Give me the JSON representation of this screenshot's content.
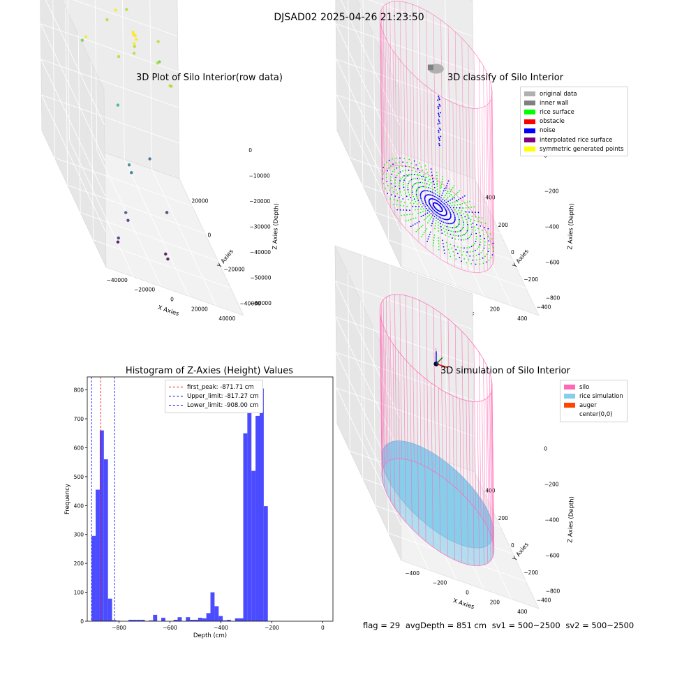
{
  "suptitle": "DJSAD02 2025-04-26 21:23:50",
  "footer": {
    "flag": "flag = 29",
    "avg_depth": "avgDepth = 851 cm",
    "sv1": "sv1 = 500~2500",
    "sv2": "sv2 = 500~2500"
  },
  "chart_data": [
    {
      "type": "scatter",
      "title": "3D Plot of Silo Interior(row data)",
      "xlabel": "X Axies",
      "ylabel": "Y Axies",
      "zlabel": "Z Axies (Depth)",
      "x_ticks": [
        "−40000",
        "−20000",
        "0",
        "20000",
        "40000"
      ],
      "y_ticks": [
        "−40000",
        "−20000",
        "0",
        "20000"
      ],
      "z_ticks": [
        "−60000",
        "−50000",
        "−40000",
        "−30000",
        "−20000",
        "−10000",
        "0"
      ],
      "xlim": [
        -50000,
        50000
      ],
      "ylim": [
        -50000,
        30000
      ],
      "zlim": [
        -62000,
        2000
      ],
      "points": [
        {
          "x": 2000,
          "y": 3000,
          "z": -1000
        },
        {
          "x": 3000,
          "y": 2000,
          "z": -1500
        },
        {
          "x": 2500,
          "y": 3500,
          "z": -2000
        },
        {
          "x": 4000,
          "y": 2500,
          "z": -3000
        },
        {
          "x": 1500,
          "y": 1000,
          "z": -4000
        },
        {
          "x": 3500,
          "y": 4000,
          "z": -2500
        },
        {
          "x": 2000,
          "y": 2000,
          "z": -8000
        },
        {
          "x": 3000,
          "y": 3000,
          "z": -6000
        },
        {
          "x": -2000,
          "y": 18000,
          "z": -3000
        },
        {
          "x": 15000,
          "y": -5000,
          "z": -5000
        },
        {
          "x": 20000,
          "y": -12000,
          "z": -8000
        },
        {
          "x": 22000,
          "y": -10000,
          "z": -9000
        },
        {
          "x": -10000,
          "y": 15000,
          "z": -6000
        },
        {
          "x": 25000,
          "y": 10000,
          "z": -12000
        },
        {
          "x": -15000,
          "y": -8000,
          "z": -6000
        },
        {
          "x": 30000,
          "y": 20000,
          "z": -10000
        },
        {
          "x": -30000,
          "y": 12000,
          "z": -15000
        },
        {
          "x": -20000,
          "y": -15000,
          "z": -20000
        },
        {
          "x": 10000,
          "y": 25000,
          "z": -5000
        },
        {
          "x": -40000,
          "y": -10000,
          "z": -2000
        },
        {
          "x": -18000,
          "y": -25000,
          "z": -35000
        },
        {
          "x": -17000,
          "y": -26000,
          "z": -37000
        },
        {
          "x": 8000,
          "y": -6000,
          "z": -40000
        },
        {
          "x": -25000,
          "y": -35000,
          "z": -50000
        },
        {
          "x": -26000,
          "y": -34000,
          "z": -48000
        },
        {
          "x": -35000,
          "y": -40000,
          "z": -55000
        },
        {
          "x": -36000,
          "y": -41000,
          "z": -56000
        },
        {
          "x": 5000,
          "y": -30000,
          "z": -60000
        },
        {
          "x": 6000,
          "y": -31000,
          "z": -61000
        },
        {
          "x": 12000,
          "y": -20000,
          "z": -50000
        }
      ]
    },
    {
      "type": "scatter",
      "title": "3D classify of Silo Interior",
      "xlabel": "X Axies",
      "ylabel": "Y Axies",
      "zlabel": "Z Axies (Depth)",
      "x_ticks": [
        "−400",
        "−200",
        "0",
        "200",
        "400"
      ],
      "y_ticks": [
        "−400",
        "−200",
        "0",
        "200",
        "400"
      ],
      "z_ticks": [
        "−800",
        "−600",
        "−400",
        "−200",
        "0"
      ],
      "xlim": [
        -500,
        500
      ],
      "ylim": [
        -500,
        500
      ],
      "zlim": [
        -900,
        0
      ],
      "legend_position": "top-right",
      "legend": [
        {
          "name": "original data",
          "color": "#b0b0b0"
        },
        {
          "name": "inner wall",
          "color": "#808080"
        },
        {
          "name": "rice surface",
          "color": "#00ff00"
        },
        {
          "name": "obstacle",
          "color": "#ff0000"
        },
        {
          "name": "noise",
          "color": "#0000ff"
        },
        {
          "name": "interpolated rice surface",
          "color": "#800080"
        },
        {
          "name": "symmetric generated points",
          "color": "#ffff00"
        }
      ],
      "silo_radius": 370,
      "silo_bottom": -880,
      "silo_top": -50
    },
    {
      "type": "bar",
      "title": "Histogram of Z-Axies (Height) Values",
      "xlabel": "Depth (cm)",
      "ylabel": "Frequency",
      "xlim": [
        -925,
        40
      ],
      "ylim": [
        0,
        845
      ],
      "x_ticks": [
        "−800",
        "−600",
        "−400",
        "−200",
        "0"
      ],
      "y_ticks": [
        "0",
        "100",
        "200",
        "300",
        "400",
        "500",
        "600",
        "700",
        "800"
      ],
      "bin_start": -908,
      "bin_width": 16.1,
      "values": [
        295,
        455,
        660,
        560,
        78,
        4,
        2,
        0,
        0,
        5,
        5,
        5,
        5,
        0,
        3,
        22,
        0,
        12,
        0,
        0,
        5,
        14,
        0,
        14,
        5,
        5,
        12,
        10,
        28,
        100,
        52,
        18,
        3,
        5,
        0,
        10,
        10,
        650,
        755,
        520,
        710,
        805,
        398
      ],
      "color": "#4b4bff",
      "legend_position": "top-center",
      "lines": [
        {
          "name": "first_peak: -871.71 cm",
          "x": -871.71,
          "color": "#ff0000"
        },
        {
          "name": "Upper_limit: -817.27 cm",
          "x": -817.27,
          "color": "#0000ff"
        },
        {
          "name": "Lower_limit: -908.00 cm",
          "x": -908.0,
          "color": "#0000ff"
        }
      ]
    },
    {
      "type": "scatter",
      "title": "3D simulation of Silo Interior",
      "xlabel": "X Axies",
      "ylabel": "Y Axies",
      "zlabel": "Z Axies (Depth)",
      "x_ticks": [
        "−400",
        "−200",
        "0",
        "200",
        "400"
      ],
      "y_ticks": [
        "−400",
        "−200",
        "0",
        "200",
        "400"
      ],
      "z_ticks": [
        "−800",
        "−600",
        "−400",
        "−200",
        "0"
      ],
      "xlim": [
        -500,
        500
      ],
      "ylim": [
        -500,
        500
      ],
      "zlim": [
        -900,
        0
      ],
      "legend_position": "top-right",
      "legend": [
        {
          "name": "silo",
          "color": "#ff69b4"
        },
        {
          "name": "rice simulation",
          "color": "#87ceeb"
        },
        {
          "name": "auger",
          "color": "#ff4500"
        },
        {
          "name": "center(0,0)",
          "color": ""
        }
      ],
      "silo_radius": 370,
      "silo_bottom": -880,
      "silo_top": -50,
      "rice_level": -790
    }
  ]
}
